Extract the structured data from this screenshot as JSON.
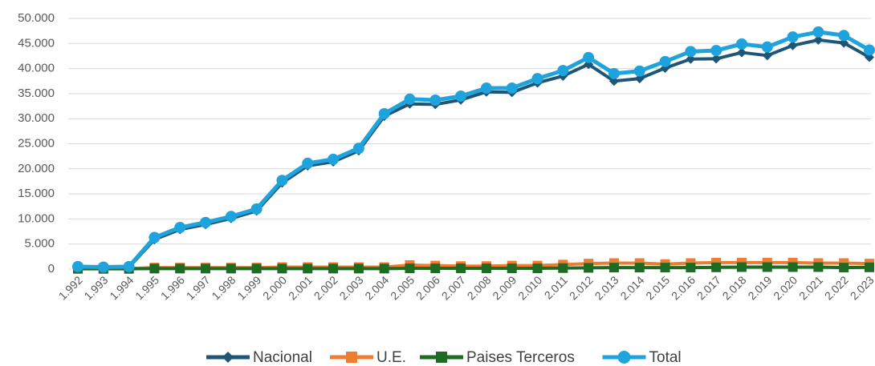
{
  "chart_data": {
    "type": "line",
    "categories": [
      "1.992",
      "1.993",
      "1.994",
      "1.995",
      "1.996",
      "1.997",
      "1.998",
      "1.999",
      "2.000",
      "2.001",
      "2.002",
      "2.003",
      "2.004",
      "2.005",
      "2.006",
      "2.007",
      "2.008",
      "2.009",
      "2.010",
      "2.011",
      "2.012",
      "2.013",
      "2.014",
      "2.015",
      "2.016",
      "2.017",
      "2.018",
      "2.019",
      "2.020",
      "2.021",
      "2.022",
      "2.023"
    ],
    "series": [
      {
        "name": "Nacional",
        "color": "#1f5676",
        "marker": "diamond",
        "values": [
          350,
          250,
          350,
          5900,
          7900,
          8900,
          10100,
          11600,
          17200,
          20600,
          21400,
          23600,
          30500,
          32950,
          32850,
          33750,
          35350,
          35250,
          37150,
          38500,
          40850,
          37500,
          38000,
          40100,
          41900,
          41950,
          43200,
          42600,
          44600,
          45700,
          45100,
          42250
        ]
      },
      {
        "name": "U.E.",
        "color": "#ed7d31",
        "marker": "square",
        "values": [
          100,
          100,
          100,
          300,
          300,
          300,
          300,
          300,
          400,
          400,
          400,
          400,
          400,
          800,
          700,
          600,
          600,
          700,
          700,
          900,
          1100,
          1200,
          1200,
          1000,
          1200,
          1300,
          1300,
          1300,
          1300,
          1200,
          1200,
          1100
        ]
      },
      {
        "name": "Paises Terceros",
        "color": "#1e6b24",
        "marker": "square",
        "values": [
          50,
          50,
          50,
          100,
          100,
          100,
          100,
          100,
          100,
          100,
          100,
          100,
          100,
          150,
          150,
          150,
          150,
          150,
          150,
          200,
          250,
          300,
          300,
          300,
          300,
          350,
          400,
          400,
          400,
          400,
          300,
          350
        ]
      },
      {
        "name": "Total",
        "color": "#1fa3dc",
        "marker": "circle",
        "values": [
          500,
          400,
          500,
          6300,
          8300,
          9300,
          10500,
          12000,
          17700,
          21100,
          21900,
          24100,
          31000,
          33900,
          33700,
          34500,
          36100,
          36100,
          38000,
          39600,
          42200,
          39000,
          39500,
          41400,
          43400,
          43600,
          44900,
          44300,
          46300,
          47300,
          46600,
          43700
        ]
      }
    ],
    "ylim": [
      0,
      50000
    ],
    "yticks": [
      0,
      {
        "value": 5000,
        "label": "5.000"
      },
      {
        "value": 10000,
        "label": "10.000"
      },
      {
        "value": 15000,
        "label": "15.000"
      },
      {
        "value": 20000,
        "label": "20.000"
      },
      {
        "value": 25000,
        "label": "25.000"
      },
      {
        "value": 30000,
        "label": "30.000"
      },
      {
        "value": 35000,
        "label": "35.000"
      },
      {
        "value": 40000,
        "label": "40.000"
      },
      {
        "value": 45000,
        "label": "45.000"
      },
      {
        "value": 50000,
        "label": "50.000"
      }
    ],
    "grid": true,
    "legend": "bottom"
  }
}
